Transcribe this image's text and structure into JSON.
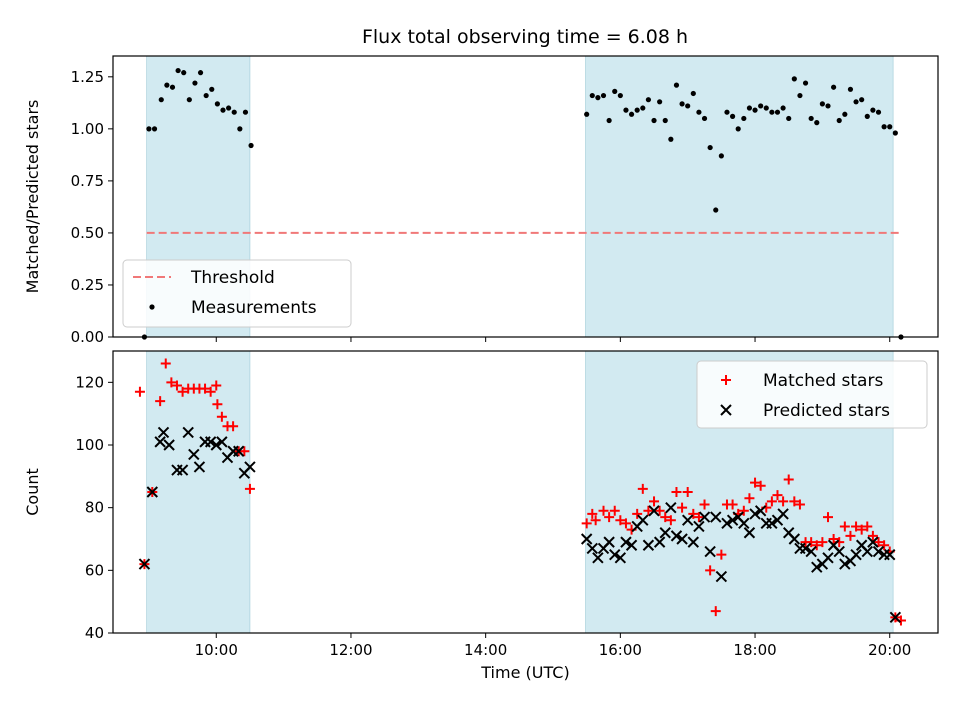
{
  "title": "Flux total observing time = 6.08 h",
  "colors": {
    "shade": "#add8e6",
    "threshold": "#f07878",
    "measurement": "#000000",
    "matched": "#ff0000",
    "predicted": "#000000"
  },
  "chart_data": [
    {
      "type": "scatter",
      "panel": "top",
      "title": "Flux total observing time = 6.08 h",
      "xlabel": "",
      "ylabel": "Matched/Predicted stars",
      "ylim": [
        0,
        1.35
      ],
      "xlim": [
        "08:28",
        "20:43"
      ],
      "x_ticks": [
        "10:00",
        "12:00",
        "14:00",
        "16:00",
        "18:00",
        "20:00"
      ],
      "x_tick_labels_visible": false,
      "y_ticks": [
        "0.00",
        "0.25",
        "0.50",
        "0.75",
        "1.00",
        "1.25"
      ],
      "legend": {
        "position": "lower-left",
        "entries": [
          "Threshold",
          "Measurements"
        ]
      },
      "shaded_intervals": [
        [
          "08:58",
          "10:30"
        ],
        [
          "15:29",
          "20:03"
        ]
      ],
      "threshold": {
        "name": "Threshold",
        "value": 0.5,
        "x_range": [
          "08:58",
          "20:10"
        ],
        "style": "dashed"
      },
      "series": [
        {
          "name": "Measurements",
          "marker": "dot",
          "points": [
            [
              "08:56",
              0.0
            ],
            [
              "09:00",
              1.0
            ],
            [
              "09:05",
              1.0
            ],
            [
              "09:11",
              1.14
            ],
            [
              "09:16",
              1.21
            ],
            [
              "09:21",
              1.2
            ],
            [
              "09:26",
              1.28
            ],
            [
              "09:31",
              1.27
            ],
            [
              "09:36",
              1.14
            ],
            [
              "09:41",
              1.22
            ],
            [
              "09:46",
              1.27
            ],
            [
              "09:51",
              1.16
            ],
            [
              "09:56",
              1.19
            ],
            [
              "10:01",
              1.12
            ],
            [
              "10:06",
              1.09
            ],
            [
              "10:11",
              1.1
            ],
            [
              "10:16",
              1.08
            ],
            [
              "10:21",
              1.0
            ],
            [
              "10:26",
              1.08
            ],
            [
              "10:31",
              0.92
            ],
            [
              "15:30",
              1.07
            ],
            [
              "15:35",
              1.16
            ],
            [
              "15:40",
              1.15
            ],
            [
              "15:45",
              1.16
            ],
            [
              "15:50",
              1.04
            ],
            [
              "15:55",
              1.18
            ],
            [
              "16:00",
              1.16
            ],
            [
              "16:05",
              1.09
            ],
            [
              "16:10",
              1.07
            ],
            [
              "16:15",
              1.09
            ],
            [
              "16:20",
              1.1
            ],
            [
              "16:25",
              1.14
            ],
            [
              "16:30",
              1.04
            ],
            [
              "16:35",
              1.13
            ],
            [
              "16:40",
              1.04
            ],
            [
              "16:45",
              0.95
            ],
            [
              "16:50",
              1.21
            ],
            [
              "16:55",
              1.12
            ],
            [
              "17:00",
              1.11
            ],
            [
              "17:05",
              1.17
            ],
            [
              "17:10",
              1.08
            ],
            [
              "17:15",
              1.05
            ],
            [
              "17:20",
              0.91
            ],
            [
              "17:25",
              0.61
            ],
            [
              "17:30",
              0.87
            ],
            [
              "17:35",
              1.08
            ],
            [
              "17:40",
              1.06
            ],
            [
              "17:45",
              1.0
            ],
            [
              "17:50",
              1.05
            ],
            [
              "17:55",
              1.1
            ],
            [
              "18:00",
              1.09
            ],
            [
              "18:05",
              1.11
            ],
            [
              "18:10",
              1.1
            ],
            [
              "18:15",
              1.08
            ],
            [
              "18:20",
              1.08
            ],
            [
              "18:25",
              1.1
            ],
            [
              "18:30",
              1.05
            ],
            [
              "18:35",
              1.24
            ],
            [
              "18:40",
              1.16
            ],
            [
              "18:45",
              1.22
            ],
            [
              "18:50",
              1.05
            ],
            [
              "18:55",
              1.03
            ],
            [
              "19:00",
              1.12
            ],
            [
              "19:05",
              1.11
            ],
            [
              "19:10",
              1.2
            ],
            [
              "19:15",
              1.04
            ],
            [
              "19:20",
              1.07
            ],
            [
              "19:25",
              1.19
            ],
            [
              "19:30",
              1.13
            ],
            [
              "19:35",
              1.14
            ],
            [
              "19:40",
              1.06
            ],
            [
              "19:45",
              1.09
            ],
            [
              "19:50",
              1.08
            ],
            [
              "19:55",
              1.01
            ],
            [
              "20:00",
              1.01
            ],
            [
              "20:05",
              0.98
            ],
            [
              "20:10",
              0.0
            ]
          ]
        }
      ]
    },
    {
      "type": "scatter",
      "panel": "bottom",
      "xlabel": "Time (UTC)",
      "ylabel": "Count",
      "ylim": [
        40,
        130
      ],
      "xlim": [
        "08:28",
        "20:43"
      ],
      "x_ticks": [
        "10:00",
        "12:00",
        "14:00",
        "16:00",
        "18:00",
        "20:00"
      ],
      "y_ticks": [
        "40",
        "60",
        "80",
        "100",
        "120"
      ],
      "legend": {
        "position": "top-right",
        "entries": [
          "Matched stars",
          "Predicted stars"
        ]
      },
      "shaded_intervals": [
        [
          "08:58",
          "10:30"
        ],
        [
          "15:29",
          "20:03"
        ]
      ],
      "series": [
        {
          "name": "Matched stars",
          "marker": "plus",
          "points": [
            [
              "08:52",
              117
            ],
            [
              "08:56",
              62
            ],
            [
              "09:03",
              85
            ],
            [
              "09:10",
              114
            ],
            [
              "09:15",
              126
            ],
            [
              "09:20",
              120
            ],
            [
              "09:25",
              119
            ],
            [
              "09:30",
              117
            ],
            [
              "09:35",
              118
            ],
            [
              "09:40",
              118
            ],
            [
              "09:45",
              118
            ],
            [
              "09:50",
              118
            ],
            [
              "09:55",
              117
            ],
            [
              "10:00",
              119
            ],
            [
              "10:01",
              113
            ],
            [
              "10:05",
              109
            ],
            [
              "10:10",
              106
            ],
            [
              "10:15",
              106
            ],
            [
              "10:20",
              98
            ],
            [
              "10:25",
              98
            ],
            [
              "10:30",
              86
            ],
            [
              "15:30",
              75
            ],
            [
              "15:35",
              78
            ],
            [
              "15:38",
              76
            ],
            [
              "15:45",
              79
            ],
            [
              "15:50",
              77
            ],
            [
              "15:55",
              79
            ],
            [
              "16:00",
              76
            ],
            [
              "16:05",
              75
            ],
            [
              "16:10",
              73
            ],
            [
              "16:15",
              78
            ],
            [
              "16:20",
              86
            ],
            [
              "16:25",
              79
            ],
            [
              "16:30",
              82
            ],
            [
              "16:35",
              79
            ],
            [
              "16:40",
              77
            ],
            [
              "16:45",
              76
            ],
            [
              "16:50",
              85
            ],
            [
              "16:55",
              80
            ],
            [
              "17:00",
              85
            ],
            [
              "17:05",
              78
            ],
            [
              "17:10",
              77
            ],
            [
              "17:15",
              81
            ],
            [
              "17:20",
              60
            ],
            [
              "17:25",
              47
            ],
            [
              "17:30",
              65
            ],
            [
              "17:35",
              81
            ],
            [
              "17:40",
              81
            ],
            [
              "17:45",
              78
            ],
            [
              "17:50",
              79
            ],
            [
              "17:55",
              83
            ],
            [
              "18:00",
              88
            ],
            [
              "18:05",
              87
            ],
            [
              "18:10",
              80
            ],
            [
              "18:15",
              82
            ],
            [
              "18:20",
              84
            ],
            [
              "18:25",
              82
            ],
            [
              "18:30",
              89
            ],
            [
              "18:35",
              82
            ],
            [
              "18:40",
              81
            ],
            [
              "18:45",
              69
            ],
            [
              "18:50",
              69
            ],
            [
              "18:55",
              68
            ],
            [
              "19:00",
              69
            ],
            [
              "19:05",
              77
            ],
            [
              "19:10",
              70
            ],
            [
              "19:15",
              69
            ],
            [
              "19:20",
              74
            ],
            [
              "19:25",
              71
            ],
            [
              "19:30",
              74
            ],
            [
              "19:35",
              73
            ],
            [
              "19:40",
              74
            ],
            [
              "19:45",
              71
            ],
            [
              "19:50",
              69
            ],
            [
              "19:55",
              68
            ],
            [
              "20:00",
              66
            ],
            [
              "20:05",
              45
            ],
            [
              "20:10",
              44
            ]
          ]
        },
        {
          "name": "Predicted stars",
          "marker": "x",
          "points": [
            [
              "08:56",
              62
            ],
            [
              "09:03",
              85
            ],
            [
              "09:10",
              101
            ],
            [
              "09:13",
              104
            ],
            [
              "09:18",
              100
            ],
            [
              "09:25",
              92
            ],
            [
              "09:30",
              92
            ],
            [
              "09:35",
              104
            ],
            [
              "09:40",
              97
            ],
            [
              "09:45",
              93
            ],
            [
              "09:50",
              101
            ],
            [
              "09:55",
              101
            ],
            [
              "10:00",
              100
            ],
            [
              "10:05",
              101
            ],
            [
              "10:10",
              96
            ],
            [
              "10:15",
              98
            ],
            [
              "10:20",
              98
            ],
            [
              "10:25",
              91
            ],
            [
              "10:30",
              93
            ],
            [
              "15:30",
              70
            ],
            [
              "15:35",
              67
            ],
            [
              "15:40",
              64
            ],
            [
              "15:45",
              67
            ],
            [
              "15:50",
              69
            ],
            [
              "15:55",
              65
            ],
            [
              "16:00",
              64
            ],
            [
              "16:05",
              69
            ],
            [
              "16:10",
              68
            ],
            [
              "16:15",
              74
            ],
            [
              "16:20",
              76
            ],
            [
              "16:25",
              68
            ],
            [
              "16:30",
              79
            ],
            [
              "16:35",
              69
            ],
            [
              "16:40",
              72
            ],
            [
              "16:45",
              80
            ],
            [
              "16:50",
              71
            ],
            [
              "16:55",
              70
            ],
            [
              "17:00",
              76
            ],
            [
              "17:05",
              69
            ],
            [
              "17:10",
              74
            ],
            [
              "17:15",
              77
            ],
            [
              "17:20",
              66
            ],
            [
              "17:25",
              77
            ],
            [
              "17:30",
              58
            ],
            [
              "17:35",
              75
            ],
            [
              "17:40",
              76
            ],
            [
              "17:45",
              77
            ],
            [
              "17:50",
              75
            ],
            [
              "17:55",
              72
            ],
            [
              "18:00",
              78
            ],
            [
              "18:05",
              79
            ],
            [
              "18:10",
              75
            ],
            [
              "18:15",
              75
            ],
            [
              "18:20",
              76
            ],
            [
              "18:25",
              78
            ],
            [
              "18:30",
              72
            ],
            [
              "18:35",
              70
            ],
            [
              "18:40",
              67
            ],
            [
              "18:45",
              67
            ],
            [
              "18:50",
              66
            ],
            [
              "18:55",
              61
            ],
            [
              "19:00",
              62
            ],
            [
              "19:05",
              64
            ],
            [
              "19:10",
              68
            ],
            [
              "19:15",
              66
            ],
            [
              "19:20",
              62
            ],
            [
              "19:25",
              63
            ],
            [
              "19:30",
              65
            ],
            [
              "19:35",
              68
            ],
            [
              "19:40",
              66
            ],
            [
              "19:45",
              69
            ],
            [
              "19:50",
              66
            ],
            [
              "19:55",
              65
            ],
            [
              "20:00",
              65
            ],
            [
              "20:05",
              45
            ]
          ]
        }
      ]
    }
  ]
}
